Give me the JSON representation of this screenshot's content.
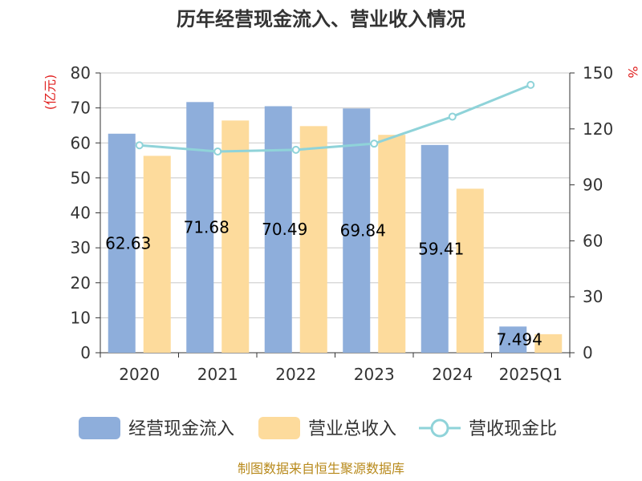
{
  "chart_data": {
    "type": "bar",
    "title": "历年经营现金流入、营业收入情况",
    "categories": [
      "2020",
      "2021",
      "2022",
      "2023",
      "2024",
      "2025Q1"
    ],
    "y_left_unit": "(亿元)",
    "y_right_unit": "%",
    "ylim_left": [
      0,
      80
    ],
    "ylim_right": [
      0,
      150
    ],
    "y_left_ticks": [
      0,
      10,
      20,
      30,
      40,
      50,
      60,
      70,
      80
    ],
    "y_right_ticks": [
      0,
      30,
      60,
      90,
      120,
      150
    ],
    "grid": true,
    "legend_position": "bottom",
    "series": [
      {
        "name": "经营现金流入",
        "type": "bar",
        "axis": "left",
        "color": "#8eaedb",
        "values": [
          62.63,
          71.68,
          70.49,
          69.84,
          59.41,
          7.494
        ],
        "labels": [
          "62.63",
          "71.68",
          "70.49",
          "69.84",
          "59.41",
          "7.494"
        ]
      },
      {
        "name": "营业总收入",
        "type": "bar",
        "axis": "left",
        "color": "#fddb9c",
        "values": [
          56.3,
          66.4,
          64.8,
          62.3,
          46.9,
          5.3
        ]
      },
      {
        "name": "营收现金比",
        "type": "line",
        "axis": "right",
        "color": "#8fd3d9",
        "values": [
          111.2,
          107.9,
          108.8,
          112.1,
          126.6,
          143.6
        ]
      }
    ]
  },
  "source_text": "制图数据来自恒生聚源数据库"
}
